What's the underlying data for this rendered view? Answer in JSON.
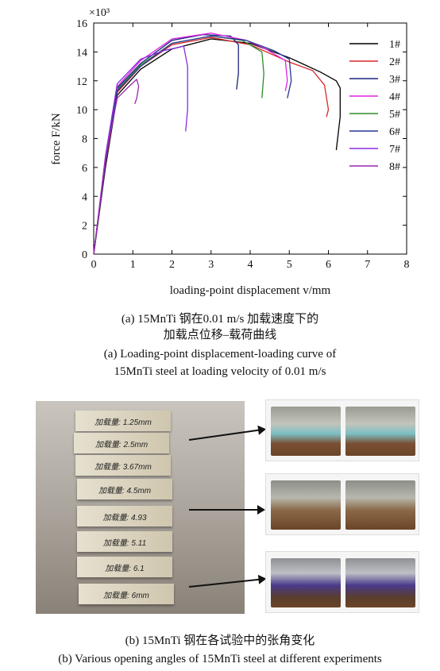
{
  "chart_data": {
    "type": "line",
    "xlabel": "loading-point displacement v/mm",
    "ylabel": "force F/kN",
    "y_multiplier": "×10³",
    "xlim": [
      0,
      8
    ],
    "ylim": [
      0,
      16
    ],
    "x_ticks": [
      "0",
      "1",
      "2",
      "3",
      "4",
      "5",
      "6",
      "7",
      "8"
    ],
    "y_ticks": [
      "0",
      "2",
      "4",
      "6",
      "8",
      "10",
      "12",
      "14",
      "16"
    ],
    "legend_position": "top-right",
    "series": [
      {
        "name": "1#",
        "color": "#000000",
        "points": [
          [
            0,
            0
          ],
          [
            0.3,
            6
          ],
          [
            0.6,
            11
          ],
          [
            1.2,
            12.8
          ],
          [
            2,
            14.2
          ],
          [
            3,
            14.9
          ],
          [
            4,
            14.6
          ],
          [
            5,
            13.6
          ],
          [
            5.8,
            12.6
          ],
          [
            6.2,
            12.0
          ],
          [
            6.3,
            11.5
          ],
          [
            6.3,
            9.5
          ],
          [
            6.2,
            7.2
          ]
        ]
      },
      {
        "name": "2#",
        "color": "#d62728",
        "points": [
          [
            0,
            0
          ],
          [
            0.3,
            6.2
          ],
          [
            0.6,
            11.2
          ],
          [
            1.2,
            13
          ],
          [
            2,
            14.5
          ],
          [
            3,
            15
          ],
          [
            4,
            14.5
          ],
          [
            5,
            13.3
          ],
          [
            5.6,
            12.7
          ],
          [
            5.9,
            11.7
          ],
          [
            6.0,
            10
          ],
          [
            5.95,
            9.5
          ]
        ]
      },
      {
        "name": "3#",
        "color": "#1a237e",
        "points": [
          [
            0,
            0
          ],
          [
            0.3,
            6.5
          ],
          [
            0.6,
            11.5
          ],
          [
            1.2,
            13.2
          ],
          [
            2,
            14.8
          ],
          [
            2.8,
            15.2
          ],
          [
            3.5,
            15.1
          ],
          [
            3.7,
            14.5
          ],
          [
            3.7,
            12.5
          ],
          [
            3.65,
            11.4
          ]
        ]
      },
      {
        "name": "4#",
        "color": "#e020e0",
        "points": [
          [
            0,
            0
          ],
          [
            0.3,
            6.6
          ],
          [
            0.6,
            11.6
          ],
          [
            1.2,
            13.4
          ],
          [
            2,
            14.9
          ],
          [
            3,
            15.3
          ],
          [
            3.9,
            14.8
          ],
          [
            4.4,
            14.2
          ],
          [
            4.9,
            13.4
          ],
          [
            4.95,
            12
          ],
          [
            4.9,
            11.3
          ]
        ]
      },
      {
        "name": "5#",
        "color": "#2e8b2e",
        "points": [
          [
            0,
            0
          ],
          [
            0.3,
            6.4
          ],
          [
            0.6,
            11.4
          ],
          [
            1.2,
            13.1
          ],
          [
            2,
            14.6
          ],
          [
            3,
            15.1
          ],
          [
            3.8,
            14.8
          ],
          [
            4.3,
            14
          ],
          [
            4.35,
            12.5
          ],
          [
            4.3,
            10.8
          ]
        ]
      },
      {
        "name": "6#",
        "color": "#283593",
        "points": [
          [
            0,
            0
          ],
          [
            0.3,
            6.3
          ],
          [
            0.6,
            11.3
          ],
          [
            1.2,
            13
          ],
          [
            2,
            14.6
          ],
          [
            3,
            15.1
          ],
          [
            3.9,
            14.8
          ],
          [
            4.6,
            14.1
          ],
          [
            5,
            13.5
          ],
          [
            5.05,
            12
          ],
          [
            4.95,
            10.8
          ]
        ]
      },
      {
        "name": "7#",
        "color": "#8a2be2",
        "points": [
          [
            0,
            0
          ],
          [
            0.3,
            6.8
          ],
          [
            0.6,
            11.8
          ],
          [
            1.2,
            13.5
          ],
          [
            1.8,
            14.1
          ],
          [
            2.3,
            14.4
          ],
          [
            2.4,
            13
          ],
          [
            2.4,
            10
          ],
          [
            2.35,
            8.5
          ]
        ]
      },
      {
        "name": "8#",
        "color": "#9c27b0",
        "points": [
          [
            0,
            0
          ],
          [
            0.3,
            6.6
          ],
          [
            0.6,
            10.8
          ],
          [
            0.9,
            11.6
          ],
          [
            1.1,
            12.1
          ],
          [
            1.15,
            11.6
          ],
          [
            1.1,
            10.8
          ],
          [
            1.05,
            10.4
          ]
        ]
      }
    ]
  },
  "captions": {
    "a_cn_line1": "(a) 15MnTi 钢在0.01 m/s 加载速度下的",
    "a_cn_line2": "加载点位移–载荷曲线",
    "a_en_line1": "(a) Loading-point displacement-loading curve of",
    "a_en_line2": "15MnTi steel at loading velocity of 0.01 m/s",
    "b_cn": "(b) 15MnTi 钢在各试验中的张角变化",
    "b_en": "(b) Various opening angles of 15MnTi steel at different experiments"
  },
  "photo": {
    "specimen_labels": [
      "加载量: 1.25mm",
      "加载量: 2.5mm",
      "加载量: 3.67mm",
      "加载量: 4.5mm",
      "加载量: 4.93",
      "加载量: 5.11",
      "加载量: 6.1",
      "加载量: 6mm"
    ]
  }
}
